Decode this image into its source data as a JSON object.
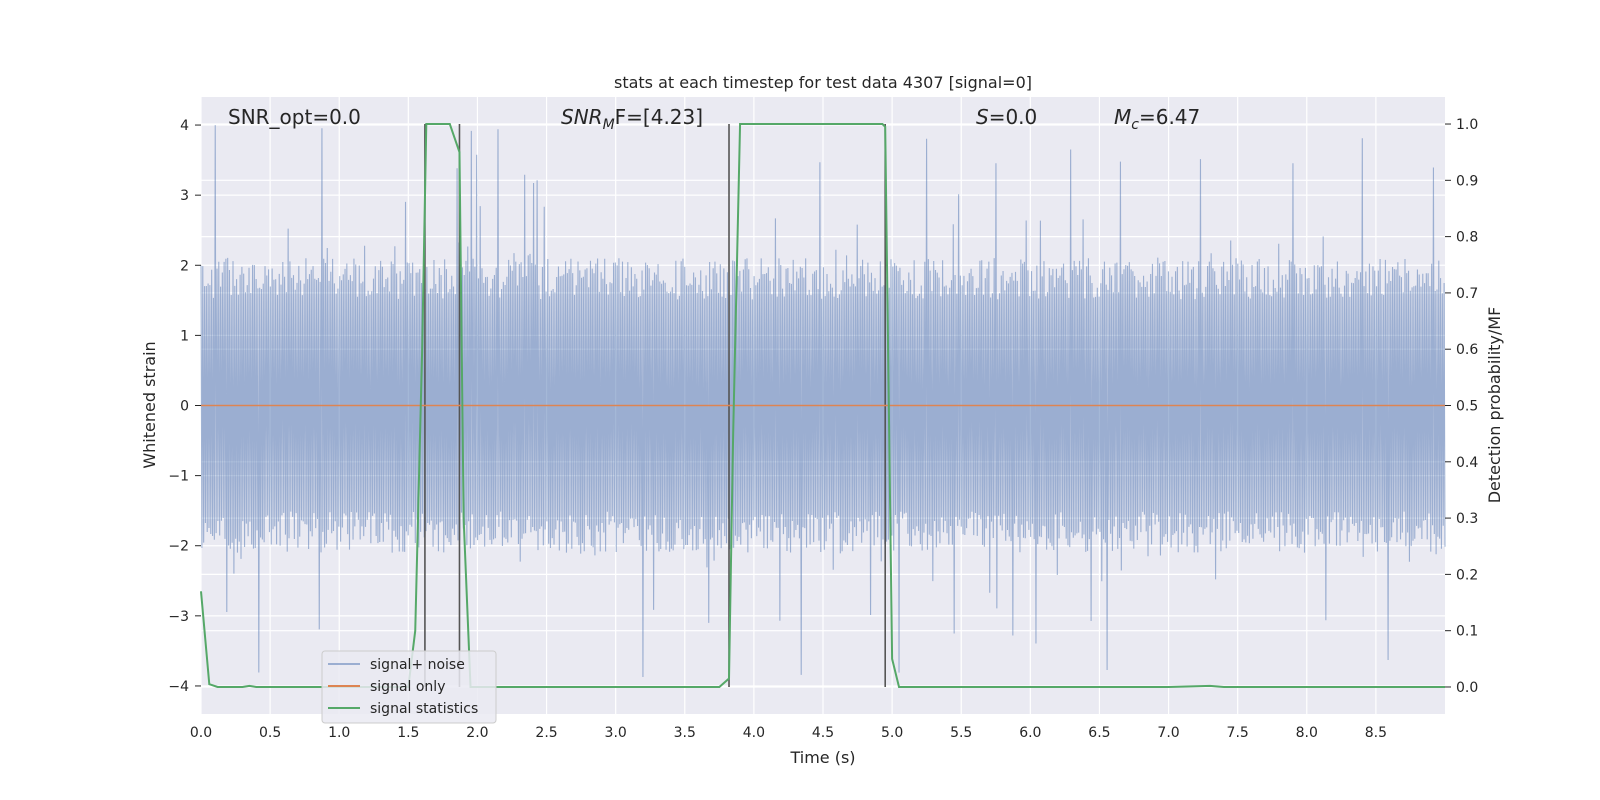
{
  "chart_data": {
    "type": "line",
    "title": "stats at each timestep for test data 4307 [signal=0]",
    "xlabel": "Time (s)",
    "ylabel": "Whitened strain",
    "y2label": "Detection probability/MF",
    "xlim": [
      0,
      9
    ],
    "ylim": [
      -4.4,
      4.4
    ],
    "y2lim": [
      -0.048,
      1.048
    ],
    "xticks": [
      "0.0",
      "0.5",
      "1.0",
      "1.5",
      "2.0",
      "2.5",
      "3.0",
      "3.5",
      "4.0",
      "4.5",
      "5.0",
      "5.5",
      "6.0",
      "6.5",
      "7.0",
      "7.5",
      "8.0",
      "8.5"
    ],
    "yticks": [
      "4",
      "3",
      "2",
      "1",
      "0",
      "−1",
      "−2",
      "−3",
      "−4"
    ],
    "y2ticks": [
      "1.0",
      "0.9",
      "0.8",
      "0.7",
      "0.6",
      "0.5",
      "0.4",
      "0.3",
      "0.2",
      "0.1",
      "0.0"
    ],
    "grid": true,
    "legend_position": "lower-left",
    "annotations": {
      "snr_opt": "SNR_opt=0.0",
      "snr_mf_main": "SNR",
      "snr_mf_sub": "M",
      "snr_mf_rest": "F=[4.23]",
      "s_italic": "S",
      "s_rest": "=0.0",
      "mc_main": "M",
      "mc_sub": "c",
      "mc_rest": "=6.47"
    },
    "series": [
      {
        "name": "signal+ noise",
        "color": "#4c72b0",
        "kind": "noise",
        "envelope_upper": 2.1,
        "envelope_lower": -2.1,
        "peak_upper": 4.0,
        "peak_lower": -3.9
      },
      {
        "name": "signal only",
        "color": "#dd8452",
        "x": [
          0,
          9
        ],
        "y": [
          0,
          0
        ]
      },
      {
        "name": "signal statistics",
        "color": "#55a868",
        "axis": "right",
        "x": [
          0,
          0.06,
          0.12,
          0.2,
          0.3,
          0.35,
          0.4,
          0.5,
          1.0,
          1.5,
          1.55,
          1.6,
          1.63,
          1.68,
          1.8,
          1.87,
          1.9,
          1.95,
          2.0,
          2.5,
          3.0,
          3.5,
          3.75,
          3.82,
          3.85,
          3.9,
          4.5,
          4.93,
          4.95,
          5.0,
          5.05,
          5.1,
          6.0,
          7.0,
          7.3,
          7.4,
          8.0,
          9.0
        ],
        "y": [
          0.17,
          0.005,
          0.0,
          0.0,
          0.0,
          0.002,
          0.0,
          0.0,
          0.0,
          0.0,
          0.1,
          0.6,
          1.0,
          1.0,
          1.0,
          0.95,
          0.3,
          0.0,
          0.0,
          0.0,
          0.0,
          0.0,
          0.0,
          0.015,
          0.45,
          1.0,
          1.0,
          1.0,
          0.995,
          0.05,
          0.0,
          0.0,
          0.0,
          0.0,
          0.002,
          0.0,
          0.0,
          0.0
        ]
      }
    ],
    "vertical_markers": [
      1.62,
      1.87,
      3.82,
      4.95
    ]
  }
}
